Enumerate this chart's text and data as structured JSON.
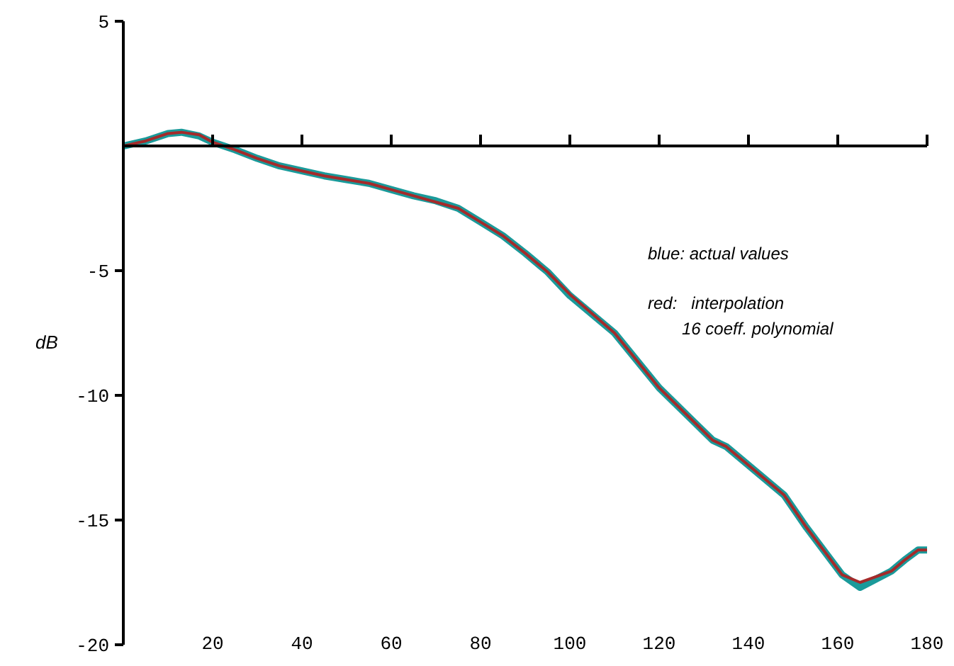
{
  "chart_data": {
    "type": "line",
    "ylabel": "dB",
    "x": [
      0,
      5,
      10,
      13,
      17,
      20,
      25,
      30,
      35,
      40,
      45,
      50,
      55,
      60,
      65,
      70,
      75,
      80,
      85,
      90,
      95,
      100,
      110,
      120,
      128,
      132,
      135,
      148,
      153,
      161,
      165,
      172,
      175,
      178,
      180
    ],
    "series": [
      {
        "color": "#1a9a9a",
        "values": [
          0,
          0.2,
          0.5,
          0.55,
          0.4,
          0.15,
          -0.15,
          -0.5,
          -0.8,
          -1.0,
          -1.2,
          -1.35,
          -1.5,
          -1.75,
          -2.0,
          -2.2,
          -2.5,
          -3.05,
          -3.6,
          -4.3,
          -5.05,
          -6.0,
          -7.5,
          -9.7,
          -11.1,
          -11.8,
          -12.05,
          -14.0,
          -15.3,
          -17.2,
          -17.7,
          -17.05,
          -16.6,
          -16.2,
          -16.2
        ]
      },
      {
        "color": "#a52a2a",
        "values": [
          0,
          0.2,
          0.5,
          0.55,
          0.45,
          0.15,
          -0.15,
          -0.5,
          -0.8,
          -1.0,
          -1.2,
          -1.35,
          -1.5,
          -1.75,
          -2.0,
          -2.25,
          -2.5,
          -3.05,
          -3.6,
          -4.3,
          -5.05,
          -5.95,
          -7.5,
          -9.7,
          -11.1,
          -11.8,
          -12.05,
          -14.0,
          -15.3,
          -17.2,
          -17.5,
          -17.05,
          -16.6,
          -16.2,
          -16.2
        ]
      }
    ],
    "xlim": [
      0,
      180
    ],
    "xticks": [
      20,
      40,
      60,
      80,
      100,
      120,
      140,
      160,
      180
    ],
    "ylim": [
      -20,
      5
    ],
    "yticks": [
      5,
      -5,
      -10,
      -15,
      -20
    ],
    "grid": false,
    "legend": false,
    "marker": "none",
    "line_style": "solid",
    "annotations": [
      "blue: actual values",
      "red:   interpolation",
      "16 coeff. polynomial"
    ]
  }
}
